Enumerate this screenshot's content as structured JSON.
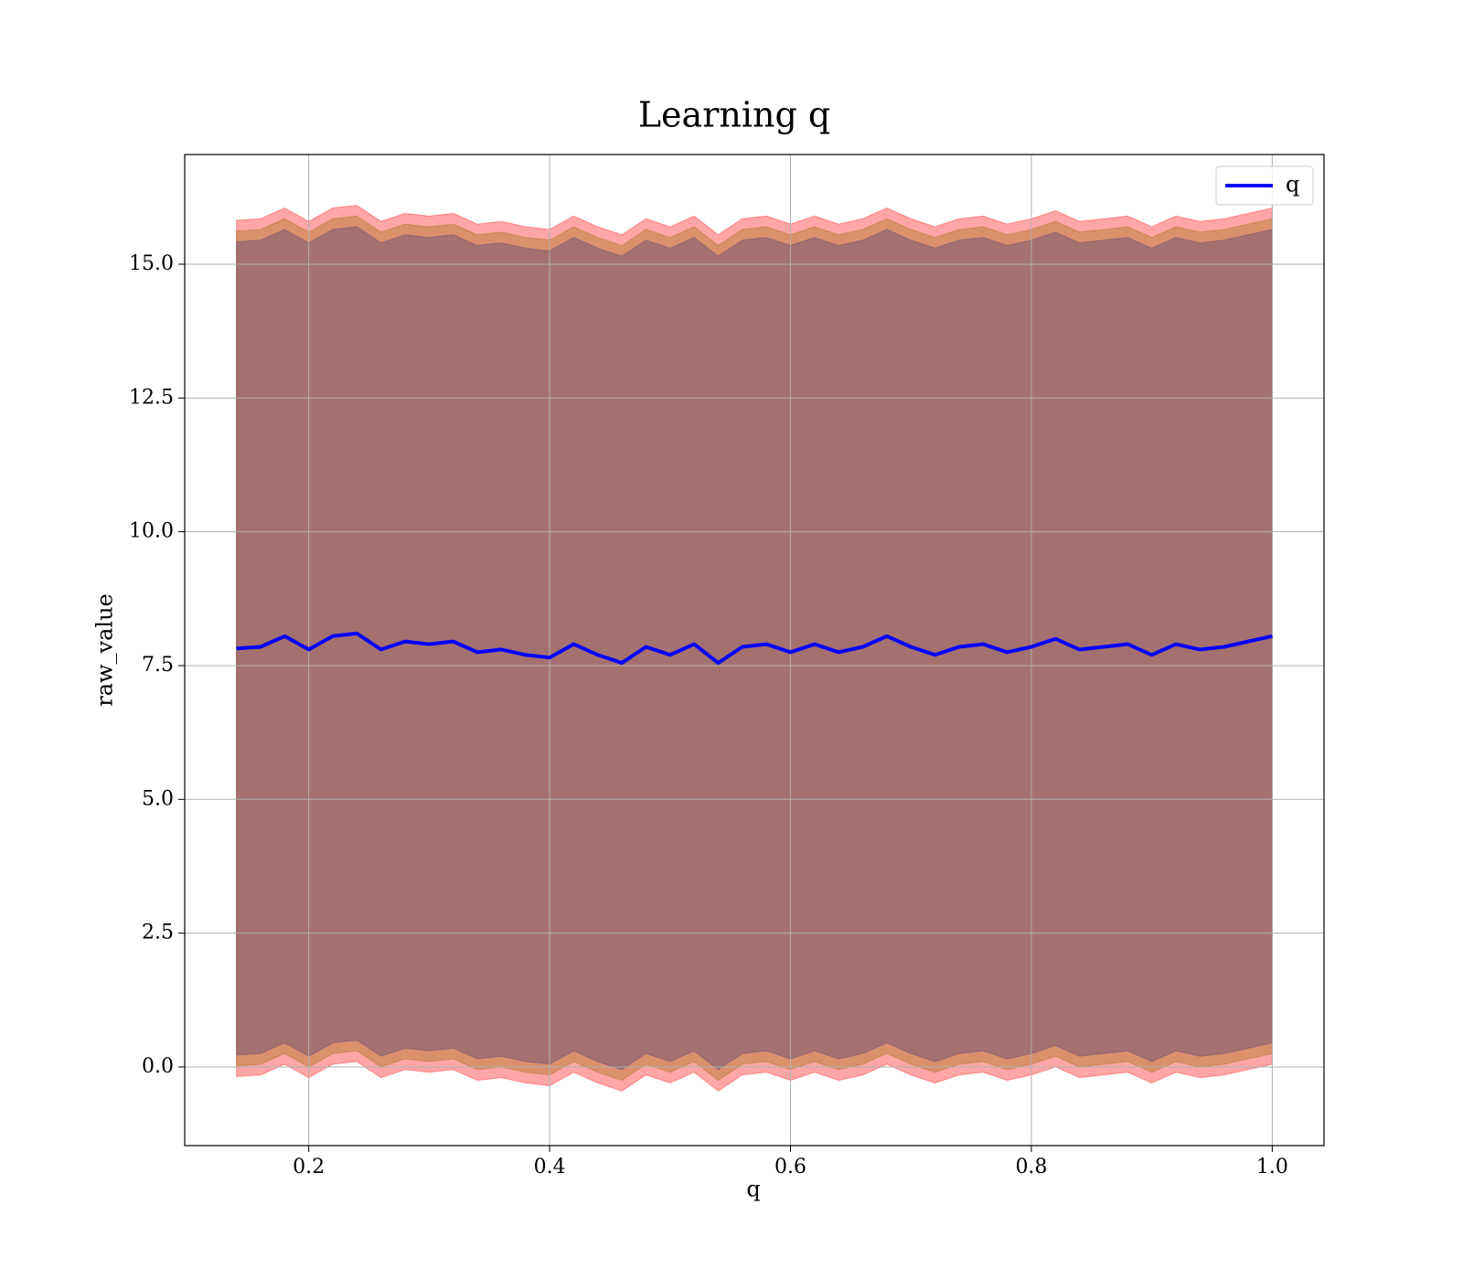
{
  "chart_data": {
    "type": "line",
    "title": "Learning q",
    "x_label": "q",
    "y_label": "raw_value",
    "legend": "upper right",
    "grid": true,
    "xlim": [
      0.097,
      1.043
    ],
    "ylim": [
      -1.47,
      17.05
    ],
    "xticks": [
      0.2,
      0.4,
      0.6,
      0.8,
      {
        "value": 1,
        "label": "1.0"
      }
    ],
    "yticks": [
      {
        "value": 0,
        "label": "0.0"
      },
      2.5,
      {
        "value": 5,
        "label": "5.0"
      },
      7.5,
      {
        "value": 10,
        "label": "10.0"
      },
      12.5,
      {
        "value": 15,
        "label": "15.0"
      }
    ],
    "x": [
      0.14,
      0.16,
      0.18,
      0.2,
      0.22,
      0.24,
      0.26,
      0.28,
      0.3,
      0.32,
      0.34,
      0.36,
      0.38,
      0.4,
      0.42,
      0.44,
      0.46,
      0.48,
      0.5,
      0.52,
      0.54,
      0.56,
      0.58,
      0.6,
      0.62,
      0.64,
      0.66,
      0.68,
      0.7,
      0.72,
      0.74,
      0.76,
      0.78,
      0.8,
      0.82,
      0.84,
      0.86,
      0.88,
      0.9,
      0.92,
      0.94,
      0.96,
      0.98,
      1.0
    ],
    "series": [
      {
        "name": "q",
        "color": "#0000ff",
        "values": [
          7.82,
          7.85,
          8.05,
          7.8,
          8.05,
          8.1,
          7.8,
          7.95,
          7.9,
          7.95,
          7.75,
          7.8,
          7.7,
          7.65,
          7.9,
          7.7,
          7.55,
          7.85,
          7.7,
          7.9,
          7.55,
          7.85,
          7.9,
          7.75,
          7.9,
          7.75,
          7.85,
          8.05,
          7.85,
          7.7,
          7.85,
          7.9,
          7.75,
          7.85,
          8.0,
          7.8,
          7.85,
          7.9,
          7.7,
          7.9,
          7.8,
          7.85,
          7.95,
          8.05
        ]
      }
    ],
    "bands": [
      {
        "color": "#ff0000",
        "opacity": 0.35,
        "upper": [
          15.82,
          15.85,
          16.05,
          15.8,
          16.05,
          16.1,
          15.8,
          15.95,
          15.9,
          15.95,
          15.75,
          15.8,
          15.7,
          15.65,
          15.9,
          15.7,
          15.55,
          15.85,
          15.7,
          15.9,
          15.55,
          15.85,
          15.9,
          15.75,
          15.9,
          15.75,
          15.85,
          16.05,
          15.85,
          15.7,
          15.85,
          15.9,
          15.75,
          15.85,
          16,
          15.8,
          15.85,
          15.9,
          15.7,
          15.9,
          15.8,
          15.85,
          15.95,
          16.05
        ],
        "lower": [
          -0.18,
          -0.15,
          0.05,
          -0.2,
          0.05,
          0.1,
          -0.2,
          -0.05,
          -0.1,
          -0.05,
          -0.25,
          -0.2,
          -0.3,
          -0.35,
          -0.1,
          -0.3,
          -0.45,
          -0.15,
          -0.3,
          -0.1,
          -0.45,
          -0.15,
          -0.1,
          -0.25,
          -0.1,
          -0.25,
          -0.15,
          0.05,
          -0.15,
          -0.3,
          -0.15,
          -0.1,
          -0.25,
          -0.15,
          0,
          -0.2,
          -0.15,
          -0.1,
          -0.3,
          -0.1,
          -0.2,
          -0.15,
          -0.05,
          0.05
        ]
      },
      {
        "color": "#996600",
        "opacity": 0.35,
        "upper": [
          15.62,
          15.65,
          15.85,
          15.6,
          15.85,
          15.9,
          15.6,
          15.75,
          15.7,
          15.75,
          15.55,
          15.6,
          15.5,
          15.45,
          15.7,
          15.5,
          15.35,
          15.65,
          15.5,
          15.7,
          15.35,
          15.65,
          15.7,
          15.55,
          15.7,
          15.55,
          15.65,
          15.85,
          15.65,
          15.5,
          15.65,
          15.7,
          15.55,
          15.65,
          15.8,
          15.6,
          15.65,
          15.7,
          15.5,
          15.7,
          15.6,
          15.65,
          15.75,
          15.85
        ],
        "lower": [
          0.02,
          0.05,
          0.25,
          0,
          0.25,
          0.3,
          0,
          0.15,
          0.1,
          0.15,
          -0.05,
          0,
          -0.1,
          -0.15,
          0.1,
          -0.1,
          -0.25,
          0.05,
          -0.1,
          0.1,
          -0.25,
          0.05,
          0.1,
          -0.05,
          0.1,
          -0.05,
          0.05,
          0.25,
          0.05,
          -0.1,
          0.05,
          0.1,
          -0.05,
          0.05,
          0.2,
          0,
          0.05,
          0.1,
          -0.1,
          0.1,
          0,
          0.05,
          0.15,
          0.25
        ]
      },
      {
        "color": "#554477",
        "opacity": 0.4,
        "upper": [
          15.42,
          15.45,
          15.65,
          15.4,
          15.65,
          15.7,
          15.4,
          15.55,
          15.5,
          15.55,
          15.35,
          15.4,
          15.3,
          15.25,
          15.5,
          15.3,
          15.15,
          15.45,
          15.3,
          15.5,
          15.15,
          15.45,
          15.5,
          15.35,
          15.5,
          15.35,
          15.45,
          15.65,
          15.45,
          15.3,
          15.45,
          15.5,
          15.35,
          15.45,
          15.6,
          15.4,
          15.45,
          15.5,
          15.3,
          15.5,
          15.4,
          15.45,
          15.55,
          15.65
        ],
        "lower": [
          0.22,
          0.25,
          0.45,
          0.2,
          0.45,
          0.5,
          0.2,
          0.35,
          0.3,
          0.35,
          0.15,
          0.2,
          0.1,
          0.05,
          0.3,
          0.1,
          -0.05,
          0.25,
          0.1,
          0.3,
          -0.05,
          0.25,
          0.3,
          0.15,
          0.3,
          0.15,
          0.25,
          0.45,
          0.25,
          0.1,
          0.25,
          0.3,
          0.15,
          0.25,
          0.4,
          0.2,
          0.25,
          0.3,
          0.1,
          0.3,
          0.2,
          0.25,
          0.35,
          0.45
        ]
      }
    ]
  }
}
